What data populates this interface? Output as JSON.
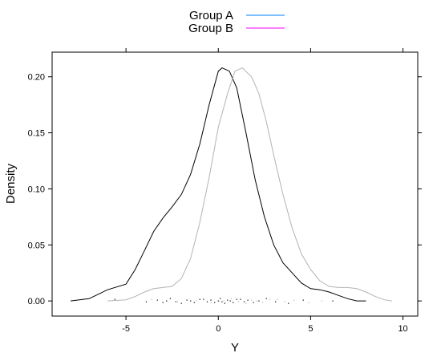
{
  "chart_data": {
    "type": "density",
    "xlabel": "Y",
    "ylabel": "Density",
    "xlim": [
      -9,
      10.8
    ],
    "ylim": [
      -0.0135,
      0.222
    ],
    "x_ticks": [
      -5,
      0,
      5,
      10
    ],
    "y_ticks": [
      0.0,
      0.05,
      0.1,
      0.15,
      0.2
    ],
    "x_tick_labels": [
      "-5",
      "0",
      "5",
      "10"
    ],
    "y_tick_labels": [
      "0.00",
      "0.05",
      "0.10",
      "0.15",
      "0.20"
    ],
    "legend": {
      "placement": "top-center",
      "entries": [
        {
          "name": "Group A",
          "color": "#0080ff"
        },
        {
          "name": "Group B",
          "color": "#ff00ff"
        }
      ]
    },
    "series": [
      {
        "name": "Group A",
        "color": "#000000",
        "points": [
          [
            -8.0,
            0.0
          ],
          [
            -7.0,
            0.002
          ],
          [
            -6.0,
            0.01
          ],
          [
            -5.0,
            0.015
          ],
          [
            -4.5,
            0.028
          ],
          [
            -4.0,
            0.045
          ],
          [
            -3.5,
            0.062
          ],
          [
            -3.0,
            0.074
          ],
          [
            -2.5,
            0.084
          ],
          [
            -2.0,
            0.095
          ],
          [
            -1.5,
            0.113
          ],
          [
            -1.0,
            0.14
          ],
          [
            -0.5,
            0.175
          ],
          [
            0.0,
            0.205
          ],
          [
            0.2,
            0.208
          ],
          [
            0.6,
            0.205
          ],
          [
            1.0,
            0.19
          ],
          [
            1.5,
            0.15
          ],
          [
            2.0,
            0.108
          ],
          [
            2.5,
            0.075
          ],
          [
            3.0,
            0.05
          ],
          [
            3.5,
            0.034
          ],
          [
            4.0,
            0.025
          ],
          [
            4.5,
            0.016
          ],
          [
            5.0,
            0.011
          ],
          [
            5.5,
            0.01
          ],
          [
            6.0,
            0.008
          ],
          [
            6.5,
            0.005
          ],
          [
            7.0,
            0.002
          ],
          [
            7.5,
            0.0
          ],
          [
            8.0,
            0.0
          ]
        ]
      },
      {
        "name": "Group B",
        "color": "#b3b3b3",
        "points": [
          [
            -6.0,
            0.0
          ],
          [
            -5.0,
            0.001
          ],
          [
            -4.5,
            0.004
          ],
          [
            -4.0,
            0.008
          ],
          [
            -3.5,
            0.011
          ],
          [
            -3.0,
            0.012
          ],
          [
            -2.5,
            0.013
          ],
          [
            -2.0,
            0.02
          ],
          [
            -1.5,
            0.038
          ],
          [
            -1.0,
            0.07
          ],
          [
            -0.5,
            0.11
          ],
          [
            0.0,
            0.155
          ],
          [
            0.5,
            0.185
          ],
          [
            0.9,
            0.205
          ],
          [
            1.3,
            0.208
          ],
          [
            1.8,
            0.2
          ],
          [
            2.2,
            0.185
          ],
          [
            2.6,
            0.16
          ],
          [
            3.0,
            0.13
          ],
          [
            3.5,
            0.095
          ],
          [
            4.0,
            0.065
          ],
          [
            4.5,
            0.042
          ],
          [
            5.0,
            0.028
          ],
          [
            5.5,
            0.018
          ],
          [
            6.0,
            0.013
          ],
          [
            6.5,
            0.012
          ],
          [
            7.0,
            0.012
          ],
          [
            7.5,
            0.011
          ],
          [
            8.0,
            0.008
          ],
          [
            8.5,
            0.004
          ],
          [
            9.0,
            0.001
          ],
          [
            9.4,
            0.0
          ]
        ]
      }
    ],
    "rug": [
      {
        "name": "Group A",
        "color": "#000000",
        "x": [
          -5.6,
          -3.9,
          -3.3,
          -3.0,
          -2.8,
          -2.6,
          -2.3,
          -2.0,
          -1.7,
          -1.5,
          -1.3,
          -1.0,
          -0.8,
          -0.6,
          -0.4,
          -0.2,
          0.0,
          0.1,
          0.2,
          0.35,
          0.5,
          0.65,
          0.8,
          1.0,
          1.2,
          1.4,
          1.6,
          1.9,
          2.2,
          2.6,
          3.1,
          3.8,
          4.6,
          6.2
        ]
      },
      {
        "name": "Group B",
        "color": "#b3b3b3",
        "x": [
          -3.6,
          -2.2,
          -1.2,
          -0.4,
          0.3,
          0.7,
          1.1,
          1.5,
          1.8,
          2.1,
          2.4,
          2.8,
          3.2,
          3.6,
          4.1,
          4.9,
          5.6
        ]
      }
    ]
  }
}
